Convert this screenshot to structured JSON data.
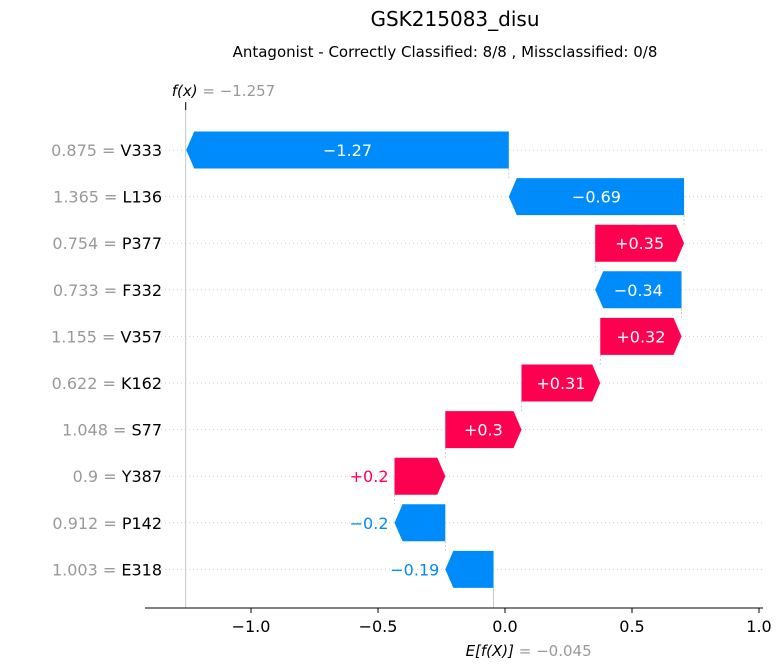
{
  "chart_data": {
    "type": "waterfall",
    "title": "GSK215083_disu",
    "subtitle": "Antagonist - Correctly Classified: 8/8 , Missclassified: 0/8",
    "base_value": -0.045,
    "output_value": -1.257,
    "base_label": "E[f(X)]",
    "base_value_text": "= −0.045",
    "output_label": "f(x)",
    "output_value_text": "= −1.257",
    "features": [
      {
        "value": "0.875",
        "name": "V333",
        "contribution": -1.27,
        "label": "−1.27"
      },
      {
        "value": "1.365",
        "name": "L136",
        "contribution": -0.69,
        "label": "−0.69"
      },
      {
        "value": "0.754",
        "name": "P377",
        "contribution": 0.35,
        "label": "+0.35"
      },
      {
        "value": "0.733",
        "name": "F332",
        "contribution": -0.34,
        "label": "−0.34"
      },
      {
        "value": "1.155",
        "name": "V357",
        "contribution": 0.32,
        "label": "+0.32"
      },
      {
        "value": "0.622",
        "name": "K162",
        "contribution": 0.31,
        "label": "+0.31"
      },
      {
        "value": "1.048",
        "name": "S77",
        "contribution": 0.3,
        "label": "+0.3"
      },
      {
        "value": "0.9",
        "name": "Y387",
        "contribution": 0.2,
        "label": "+0.2"
      },
      {
        "value": "0.912",
        "name": "P142",
        "contribution": -0.2,
        "label": "−0.2"
      },
      {
        "value": "1.003",
        "name": "E318",
        "contribution": -0.19,
        "label": "−0.19"
      }
    ],
    "x_ticks": [
      -1.0,
      -0.5,
      0.0,
      0.5,
      1.0
    ],
    "x_tick_labels": [
      "−1.0",
      "−0.5",
      "0.0",
      "0.5",
      "1.0"
    ],
    "xlim": [
      -1.38,
      1.02
    ],
    "colors": {
      "positive": "#ff0051",
      "negative": "#008bfb",
      "muted": "#999999"
    }
  }
}
